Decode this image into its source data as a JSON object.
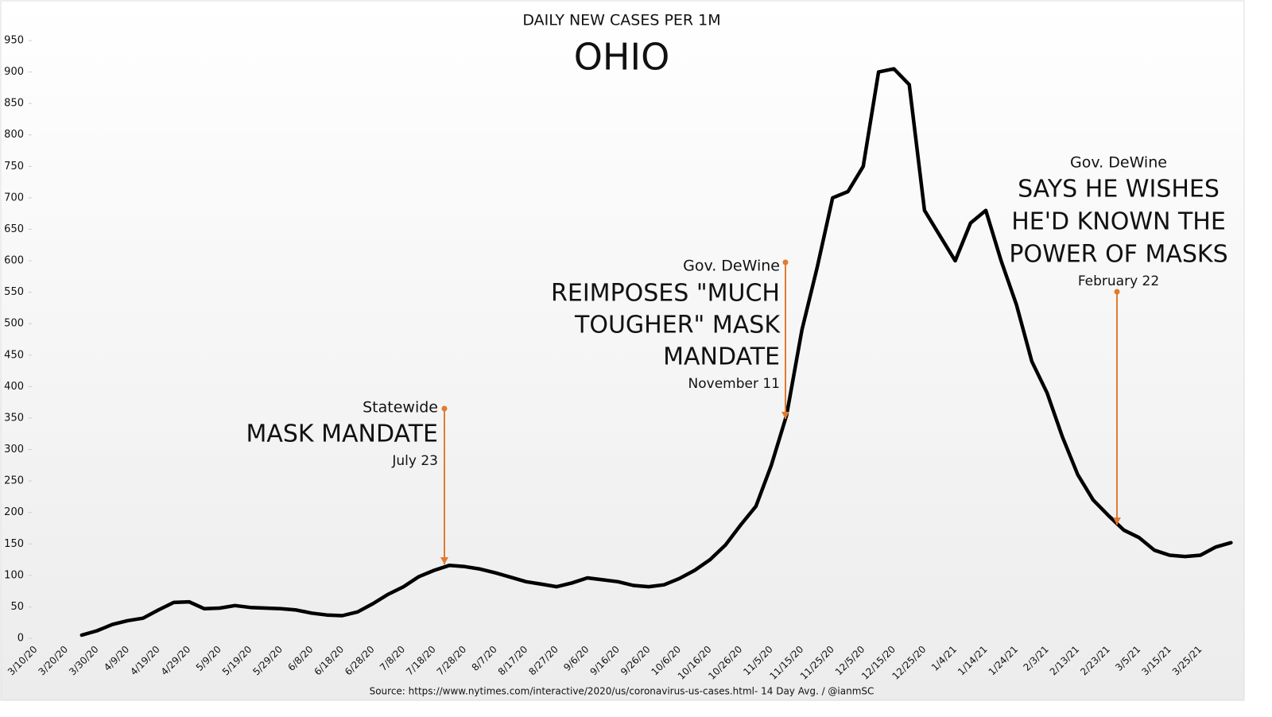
{
  "chart_data": {
    "type": "line",
    "title": "DAILY NEW CASES PER 1M",
    "subtitle": "OHIO",
    "source": "Source: https://www.nytimes.com/interactive/2020/us/coronavirus-us-cases.html- 14 Day Avg. / @ianmSC",
    "categories": [
      "3/10/20",
      null,
      "3/20/20",
      null,
      "3/30/20",
      null,
      "4/9/20",
      null,
      "4/19/20",
      null,
      "4/29/20",
      null,
      "5/9/20",
      null,
      "5/19/20",
      null,
      "5/29/20",
      null,
      "6/8/20",
      null,
      "6/18/20",
      null,
      "6/28/20",
      null,
      "7/8/20",
      null,
      "7/18/20",
      null,
      "7/28/20",
      null,
      "8/7/20",
      null,
      "8/17/20",
      null,
      "8/27/20",
      null,
      "9/6/20",
      null,
      "9/16/20",
      null,
      "9/26/20",
      null,
      "10/6/20",
      null,
      "10/16/20",
      null,
      "10/26/20",
      null,
      "11/5/20",
      null,
      "11/15/20",
      null,
      "11/25/20",
      null,
      "12/5/20",
      null,
      "12/15/20",
      null,
      "12/25/20",
      null,
      "1/4/21",
      null,
      "1/14/21",
      null,
      "1/24/21",
      null,
      "2/3/21",
      null,
      "2/13/21",
      null,
      "2/23/21",
      null,
      "3/5/21",
      null,
      "3/15/21",
      null,
      "3/25/21",
      null,
      null
    ],
    "series": [
      {
        "name": "Daily new cases per 1M",
        "color": "#000000",
        "values": [
          null,
          null,
          null,
          5,
          12,
          22,
          28,
          32,
          45,
          57,
          58,
          47,
          48,
          52,
          49,
          48,
          47,
          45,
          40,
          37,
          36,
          42,
          55,
          70,
          82,
          98,
          108,
          116,
          114,
          110,
          104,
          97,
          90,
          86,
          82,
          88,
          96,
          93,
          90,
          84,
          82,
          85,
          95,
          108,
          125,
          148,
          180,
          210,
          275,
          355,
          490,
          590,
          700,
          710,
          750,
          900,
          905,
          880,
          680,
          640,
          600,
          660,
          680,
          600,
          530,
          440,
          390,
          320,
          260,
          220,
          195,
          172,
          160,
          140,
          132,
          130,
          132,
          145,
          152
        ]
      }
    ],
    "ylim": [
      0,
      950
    ],
    "yticks": [
      0,
      50,
      100,
      150,
      200,
      250,
      300,
      350,
      400,
      450,
      500,
      550,
      600,
      650,
      700,
      750,
      800,
      850,
      900,
      950
    ],
    "annotations": [
      {
        "header": "Statewide",
        "lines": [
          "MASK MANDATE"
        ],
        "date": "July 23"
      },
      {
        "header": "Gov. DeWine",
        "lines": [
          "REIMPOSES \"MUCH",
          "TOUGHER\" MASK",
          "MANDATE"
        ],
        "date": "November 11"
      },
      {
        "header": "Gov. DeWine",
        "lines": [
          "SAYS HE WISHES",
          "HE'D KNOWN THE",
          "POWER OF MASKS"
        ],
        "date": "February 22"
      }
    ]
  }
}
